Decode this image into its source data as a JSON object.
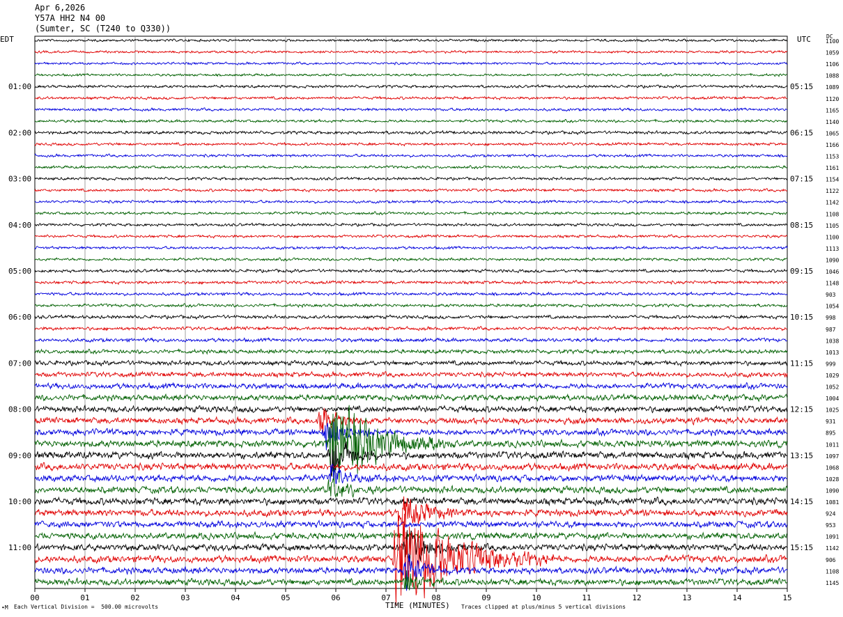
{
  "header": {
    "date": "Apr 6,2026",
    "channel": "Y57A HH2 N4 00",
    "location": "(Sumter, SC (T240 to Q330))"
  },
  "left_zone": "EDT",
  "right_zone": "UTC",
  "dc_label": "DC",
  "footer": {
    "scale": "Each Vertical Division =  500.00 microvolts",
    "xlabel": "TIME (MINUTES)",
    "clip_note": "Traces clipped at plus/minus 5 vertical divisions",
    "logo": "∙M"
  },
  "chart_data": {
    "type": "line",
    "title": "Apr 6,2026  Y57A HH2 N4 00  (Sumter, SC (T240 to Q330))",
    "xlabel": "TIME (MINUTES)",
    "ylabel": "",
    "xlim": [
      0,
      15
    ],
    "x_ticks": [
      "00",
      "01",
      "02",
      "03",
      "04",
      "05",
      "06",
      "07",
      "08",
      "09",
      "10",
      "11",
      "12",
      "13",
      "14",
      "15"
    ],
    "grid": true,
    "trace_colors": [
      "#000000",
      "#e00000",
      "#0000dd",
      "#006000"
    ],
    "left_time_labels": [
      "01:00",
      "02:00",
      "03:00",
      "04:00",
      "05:00",
      "06:00",
      "07:00",
      "08:00",
      "09:00",
      "10:00",
      "11:00"
    ],
    "right_time_labels": [
      "05:15",
      "06:15",
      "07:15",
      "08:15",
      "09:15",
      "10:15",
      "11:15",
      "12:15",
      "13:15",
      "14:15",
      "15:15"
    ],
    "dc_offsets": [
      1100,
      1059,
      1106,
      1088,
      1089,
      1120,
      1165,
      1140,
      1065,
      1166,
      1153,
      1161,
      1154,
      1122,
      1142,
      1108,
      1105,
      1100,
      1113,
      1090,
      1046,
      1148,
      903,
      1054,
      998,
      987,
      1038,
      1013,
      999,
      1029,
      1052,
      1004,
      1025,
      931,
      895,
      1011,
      1097,
      1068,
      1028,
      1090,
      1081,
      924,
      953,
      1091,
      1142,
      906,
      1108,
      1145
    ],
    "trace_noise": [
      0.8,
      0.8,
      0.8,
      0.8,
      0.9,
      0.9,
      0.9,
      0.9,
      1.0,
      0.9,
      0.9,
      0.9,
      0.9,
      0.9,
      0.9,
      0.9,
      0.9,
      0.9,
      0.9,
      0.9,
      1.0,
      1.0,
      1.0,
      1.0,
      1.1,
      1.1,
      1.2,
      1.3,
      1.5,
      1.6,
      1.8,
      1.9,
      2.0,
      2.0,
      2.0,
      2.2,
      2.3,
      2.3,
      2.2,
      2.2,
      2.3,
      2.2,
      2.1,
      2.1,
      2.2,
      2.3,
      2.1,
      2.1
    ],
    "events": [
      {
        "trace": 33,
        "minute": 5.7,
        "amplitude": 1.2,
        "duration_min": 1.0
      },
      {
        "trace": 34,
        "minute": 5.8,
        "amplitude": 1.6,
        "duration_min": 1.0
      },
      {
        "trace": 35,
        "minute": 5.9,
        "amplitude": 4.0,
        "duration_min": 2.5
      },
      {
        "trace": 36,
        "minute": 5.9,
        "amplitude": 1.6,
        "duration_min": 1.2
      },
      {
        "trace": 38,
        "minute": 5.9,
        "amplitude": 1.3,
        "duration_min": 0.8
      },
      {
        "trace": 39,
        "minute": 5.9,
        "amplitude": 1.2,
        "duration_min": 0.8
      },
      {
        "trace": 41,
        "minute": 7.3,
        "amplitude": 1.6,
        "duration_min": 1.5
      },
      {
        "trace": 44,
        "minute": 7.4,
        "amplitude": 1.5,
        "duration_min": 1.3
      },
      {
        "trace": 45,
        "minute": 7.2,
        "amplitude": 4.5,
        "duration_min": 3.2
      },
      {
        "trace": 46,
        "minute": 7.4,
        "amplitude": 1.5,
        "duration_min": 1.0
      },
      {
        "trace": 47,
        "minute": 7.4,
        "amplitude": 1.2,
        "duration_min": 0.8
      }
    ]
  }
}
